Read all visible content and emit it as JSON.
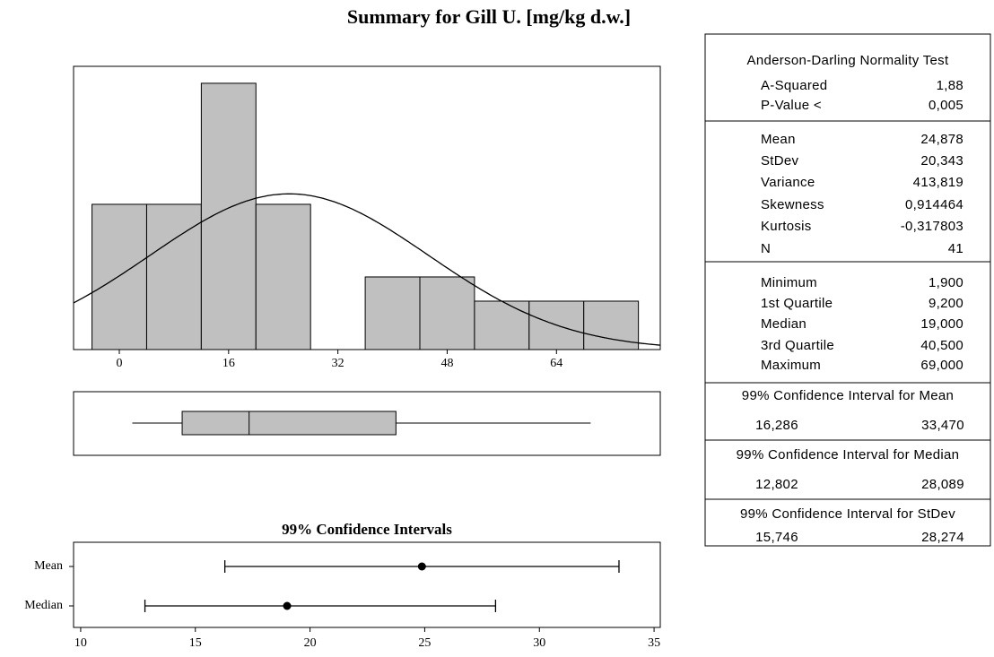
{
  "title": "Summary for Gill U. [mg/kg d.w.]",
  "chart_data": [
    {
      "type": "histogram",
      "bins": [
        -4,
        4,
        12,
        20,
        28,
        36,
        44,
        52,
        60,
        68,
        76
      ],
      "values": [
        6,
        6,
        11,
        6,
        0,
        3,
        3,
        2,
        2,
        2
      ],
      "color": "#c0c0c0",
      "xlim": [
        -6.7,
        79.2
      ],
      "xticks": [
        0,
        16,
        32,
        48,
        64
      ],
      "ylim": [
        0,
        11.7
      ]
    },
    {
      "type": "interval",
      "title": "99% Confidence Intervals",
      "categories": [
        "Mean",
        "Median"
      ],
      "xlim": [
        9.69,
        35.27
      ],
      "xticks": [
        10,
        15,
        20,
        25,
        30,
        35
      ]
    }
  ],
  "table": {
    "sections": [
      {
        "title": "Anderson-Darling Normality Test",
        "rows": [
          [
            "A-Squared",
            "1,88"
          ],
          [
            "P-Value <",
            "0,005"
          ]
        ]
      },
      {
        "rows": [
          [
            "Mean",
            "24,878"
          ],
          [
            "StDev",
            "20,343"
          ],
          [
            "Variance",
            "413,819"
          ],
          [
            "Skewness",
            "0,914464"
          ],
          [
            "Kurtosis",
            "-0,317803"
          ],
          [
            "N",
            "41"
          ]
        ]
      },
      {
        "rows": [
          [
            "Minimum",
            "1,900"
          ],
          [
            "1st Quartile",
            "9,200"
          ],
          [
            "Median",
            "19,000"
          ],
          [
            "3rd Quartile",
            "40,500"
          ],
          [
            "Maximum",
            "69,000"
          ]
        ]
      },
      {
        "title": "99% Confidence Interval for Mean",
        "rows": [
          [
            "16,286",
            "33,470"
          ]
        ]
      },
      {
        "title": "99% Confidence Interval for Median",
        "rows": [
          [
            "12,802",
            "28,089"
          ]
        ]
      },
      {
        "title": "99% Confidence Interval for StDev",
        "rows": [
          [
            "15,746",
            "28,274"
          ]
        ]
      }
    ]
  }
}
